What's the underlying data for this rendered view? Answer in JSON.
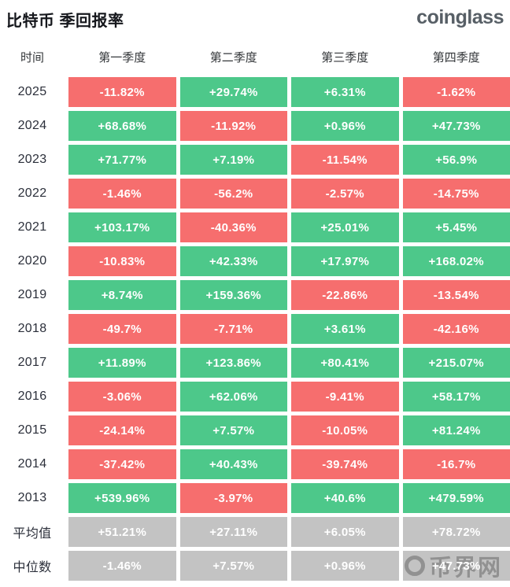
{
  "header": {
    "title": "比特币 季回报率",
    "logo": "coinglass"
  },
  "colors": {
    "positive": "#4dc88a",
    "negative": "#f66e6e",
    "neutral": "#c3c3c3",
    "cell_text": "#ffffff"
  },
  "watermark": {
    "text": "币界网"
  },
  "chart_data": {
    "type": "table",
    "title": "比特币 季回报率",
    "columns": [
      "时间",
      "第一季度",
      "第二季度",
      "第三季度",
      "第四季度"
    ],
    "rows": [
      {
        "label": "2025",
        "cells": [
          {
            "v": "-11.82%",
            "s": "neg"
          },
          {
            "v": "+29.74%",
            "s": "pos"
          },
          {
            "v": "+6.31%",
            "s": "pos"
          },
          {
            "v": "-1.62%",
            "s": "neg"
          }
        ]
      },
      {
        "label": "2024",
        "cells": [
          {
            "v": "+68.68%",
            "s": "pos"
          },
          {
            "v": "-11.92%",
            "s": "neg"
          },
          {
            "v": "+0.96%",
            "s": "pos"
          },
          {
            "v": "+47.73%",
            "s": "pos"
          }
        ]
      },
      {
        "label": "2023",
        "cells": [
          {
            "v": "+71.77%",
            "s": "pos"
          },
          {
            "v": "+7.19%",
            "s": "pos"
          },
          {
            "v": "-11.54%",
            "s": "neg"
          },
          {
            "v": "+56.9%",
            "s": "pos"
          }
        ]
      },
      {
        "label": "2022",
        "cells": [
          {
            "v": "-1.46%",
            "s": "neg"
          },
          {
            "v": "-56.2%",
            "s": "neg"
          },
          {
            "v": "-2.57%",
            "s": "neg"
          },
          {
            "v": "-14.75%",
            "s": "neg"
          }
        ]
      },
      {
        "label": "2021",
        "cells": [
          {
            "v": "+103.17%",
            "s": "pos"
          },
          {
            "v": "-40.36%",
            "s": "neg"
          },
          {
            "v": "+25.01%",
            "s": "pos"
          },
          {
            "v": "+5.45%",
            "s": "pos"
          }
        ]
      },
      {
        "label": "2020",
        "cells": [
          {
            "v": "-10.83%",
            "s": "neg"
          },
          {
            "v": "+42.33%",
            "s": "pos"
          },
          {
            "v": "+17.97%",
            "s": "pos"
          },
          {
            "v": "+168.02%",
            "s": "pos"
          }
        ]
      },
      {
        "label": "2019",
        "cells": [
          {
            "v": "+8.74%",
            "s": "pos"
          },
          {
            "v": "+159.36%",
            "s": "pos"
          },
          {
            "v": "-22.86%",
            "s": "neg"
          },
          {
            "v": "-13.54%",
            "s": "neg"
          }
        ]
      },
      {
        "label": "2018",
        "cells": [
          {
            "v": "-49.7%",
            "s": "neg"
          },
          {
            "v": "-7.71%",
            "s": "neg"
          },
          {
            "v": "+3.61%",
            "s": "pos"
          },
          {
            "v": "-42.16%",
            "s": "neg"
          }
        ]
      },
      {
        "label": "2017",
        "cells": [
          {
            "v": "+11.89%",
            "s": "pos"
          },
          {
            "v": "+123.86%",
            "s": "pos"
          },
          {
            "v": "+80.41%",
            "s": "pos"
          },
          {
            "v": "+215.07%",
            "s": "pos"
          }
        ]
      },
      {
        "label": "2016",
        "cells": [
          {
            "v": "-3.06%",
            "s": "neg"
          },
          {
            "v": "+62.06%",
            "s": "pos"
          },
          {
            "v": "-9.41%",
            "s": "neg"
          },
          {
            "v": "+58.17%",
            "s": "pos"
          }
        ]
      },
      {
        "label": "2015",
        "cells": [
          {
            "v": "-24.14%",
            "s": "neg"
          },
          {
            "v": "+7.57%",
            "s": "pos"
          },
          {
            "v": "-10.05%",
            "s": "neg"
          },
          {
            "v": "+81.24%",
            "s": "pos"
          }
        ]
      },
      {
        "label": "2014",
        "cells": [
          {
            "v": "-37.42%",
            "s": "neg"
          },
          {
            "v": "+40.43%",
            "s": "pos"
          },
          {
            "v": "-39.74%",
            "s": "neg"
          },
          {
            "v": "-16.7%",
            "s": "neg"
          }
        ]
      },
      {
        "label": "2013",
        "cells": [
          {
            "v": "+539.96%",
            "s": "pos"
          },
          {
            "v": "-3.97%",
            "s": "neg"
          },
          {
            "v": "+40.6%",
            "s": "pos"
          },
          {
            "v": "+479.59%",
            "s": "pos"
          }
        ]
      },
      {
        "label": "平均值",
        "cells": [
          {
            "v": "+51.21%",
            "s": "neutral"
          },
          {
            "v": "+27.11%",
            "s": "neutral"
          },
          {
            "v": "+6.05%",
            "s": "neutral"
          },
          {
            "v": "+78.72%",
            "s": "neutral"
          }
        ]
      },
      {
        "label": "中位数",
        "cells": [
          {
            "v": "-1.46%",
            "s": "neutral"
          },
          {
            "v": "+7.57%",
            "s": "neutral"
          },
          {
            "v": "+0.96%",
            "s": "neutral"
          },
          {
            "v": "+47.73%",
            "s": "neutral"
          }
        ]
      }
    ]
  }
}
